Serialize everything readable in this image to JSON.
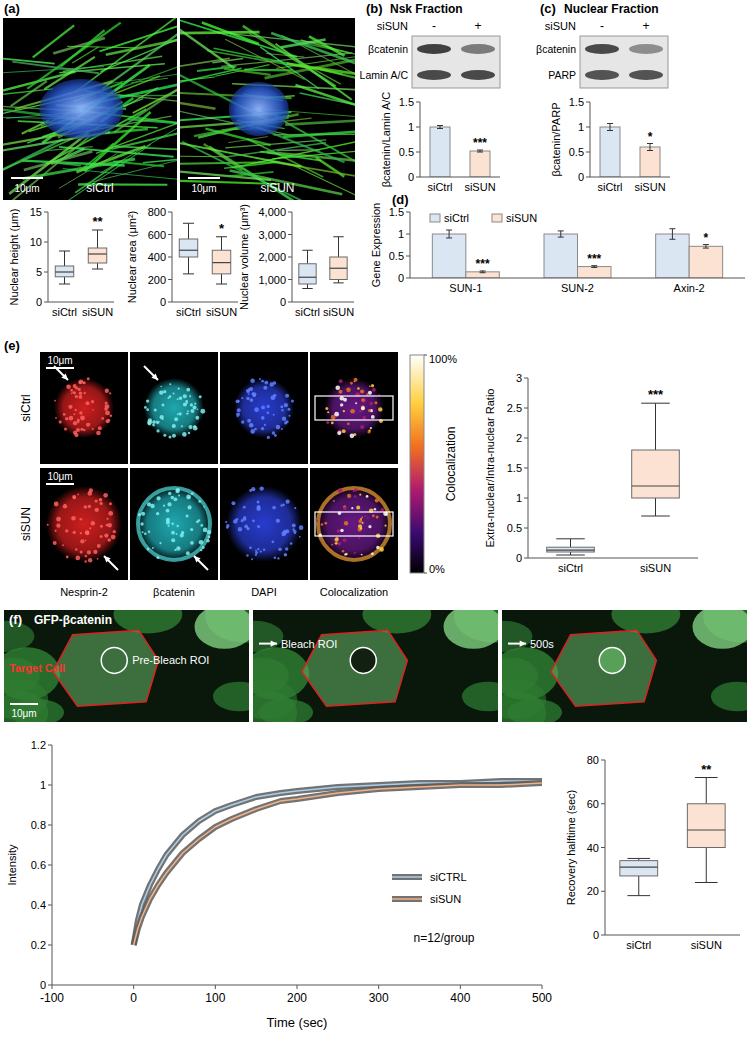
{
  "panels": {
    "a": {
      "label": "(a)",
      "images": [
        {
          "caption": "siCtrl",
          "scale_bar": "10μm"
        },
        {
          "caption": "siSUN",
          "scale_bar": "10μm"
        }
      ]
    },
    "b": {
      "label": "(b)",
      "title": "Nsk Fraction",
      "treatment": "siSUN",
      "lanes": [
        "-",
        "+"
      ],
      "bands": [
        "βcatenin",
        "Lamin A/C"
      ]
    },
    "c": {
      "label": "(c)",
      "title": "Nuclear Fraction",
      "treatment": "siSUN",
      "lanes": [
        "-",
        "+"
      ],
      "bands": [
        "βcatenin",
        "PARP"
      ]
    },
    "d": {
      "label": "(d)"
    },
    "e": {
      "label": "(e)",
      "rows": [
        "siCtrl",
        "siSUN"
      ],
      "columns": [
        "Nesprin-2",
        "βcatenin",
        "DAPI",
        "Colocalization"
      ],
      "scale_bar": "10μm",
      "colorbar": {
        "title": "Colocalization",
        "range": [
          0,
          100
        ],
        "ticks": [
          {
            "value": 0,
            "label": "0%"
          },
          {
            "value": 100,
            "label": "100%"
          }
        ]
      }
    },
    "f": {
      "label": "(f)",
      "channel": "GFP-βcatenin",
      "target": "Target Cell",
      "frames": [
        "Pre-Bleach ROI",
        "Bleach ROI",
        "500s"
      ],
      "scale_bar": "10μm"
    }
  },
  "chart_data": [
    {
      "type": "box",
      "ylabel": "Nuclear height (μm)",
      "categories": [
        "siCtrl",
        "siSUN"
      ],
      "colors": [
        "#dae6f2",
        "#fbe2d2"
      ],
      "ylim": [
        0,
        15
      ],
      "yticks": [
        0,
        5,
        10,
        15
      ],
      "boxes": [
        {
          "whisker_low": 3,
          "q1": 4.2,
          "median": 5,
          "q3": 6,
          "whisker_high": 8.5
        },
        {
          "whisker_low": 5.5,
          "q1": 6.5,
          "median": 8,
          "q3": 9,
          "whisker_high": 12
        }
      ],
      "significance": [
        null,
        "**"
      ]
    },
    {
      "type": "box",
      "ylabel": "Nuclear area (μm²)",
      "categories": [
        "siCtrl",
        "siSUN"
      ],
      "colors": [
        "#dae6f2",
        "#fbe2d2"
      ],
      "ylim": [
        0,
        800
      ],
      "yticks": [
        0,
        200,
        400,
        600,
        800
      ],
      "boxes": [
        {
          "whisker_low": 250,
          "q1": 400,
          "median": 460,
          "q3": 560,
          "whisker_high": 700
        },
        {
          "whisker_low": 160,
          "q1": 250,
          "median": 350,
          "q3": 460,
          "whisker_high": 580
        }
      ],
      "significance": [
        null,
        "*"
      ]
    },
    {
      "type": "box",
      "ylabel": "Nuclear volume (μm³)",
      "categories": [
        "siCtrl",
        "siSUN"
      ],
      "colors": [
        "#dae6f2",
        "#fbe2d2"
      ],
      "ylim": [
        0,
        4000
      ],
      "yticks": [
        0,
        {
          "value": 1000,
          "label": "1,000"
        },
        {
          "value": 2000,
          "label": "2,000"
        },
        {
          "value": 3000,
          "label": "3,000"
        },
        {
          "value": 4000,
          "label": "4,000"
        }
      ],
      "boxes": [
        {
          "whisker_low": 600,
          "q1": 800,
          "median": 1100,
          "q3": 1700,
          "whisker_high": 2300
        },
        {
          "whisker_low": 850,
          "q1": 1000,
          "median": 1500,
          "q3": 2000,
          "whisker_high": 2900
        }
      ]
    },
    {
      "type": "bar",
      "ylabel": "βcatenin/Lamin A/C",
      "categories": [
        "siCtrl",
        "siSUN"
      ],
      "colors": [
        "#dae6f2",
        "#fbe2d2"
      ],
      "values": [
        1,
        0.52
      ],
      "errors": [
        0.03,
        0.02
      ],
      "ylim": [
        0,
        1.5
      ],
      "yticks": [
        0,
        0.5,
        1,
        1.5
      ],
      "significance": [
        null,
        "***"
      ]
    },
    {
      "type": "bar",
      "ylabel": "βcatenin/PARP",
      "categories": [
        "siCtrl",
        "siSUN"
      ],
      "colors": [
        "#dae6f2",
        "#fbe2d2"
      ],
      "values": [
        1,
        0.6
      ],
      "errors": [
        0.07,
        0.07
      ],
      "ylim": [
        0,
        1.5
      ],
      "yticks": [
        0,
        0.5,
        1,
        1.5
      ],
      "significance": [
        null,
        "*"
      ]
    },
    {
      "type": "bar",
      "ylabel": "Gene Expression",
      "categories": [
        "SUN-1",
        "SUN-2",
        "Axin-2"
      ],
      "legend": "top",
      "ylim": [
        0,
        1.5
      ],
      "yticks": [
        0,
        0.5,
        1,
        1.5
      ],
      "series": [
        {
          "name": "siCtrl",
          "color": "#dae6f2",
          "values": [
            1,
            1,
            1
          ],
          "errors": [
            0.09,
            0.07,
            0.12
          ]
        },
        {
          "name": "siSUN",
          "color": "#fbe2d2",
          "values": [
            0.14,
            0.26,
            0.72
          ],
          "errors": [
            0.02,
            0.02,
            0.04
          ],
          "significance": [
            "***",
            "***",
            "*"
          ]
        }
      ]
    },
    {
      "type": "box",
      "ylabel": "Extra-nuclear/Intra-nuclear Ratio",
      "categories": [
        "siCtrl",
        "siSUN"
      ],
      "colors": [
        "#dae6f2",
        "#fbe2d2"
      ],
      "ylim": [
        0,
        3
      ],
      "yticks": [
        0,
        0.5,
        1,
        1.5,
        2,
        2.5,
        3
      ],
      "boxes": [
        {
          "whisker_low": 0.05,
          "q1": 0.1,
          "median": 0.13,
          "q3": 0.18,
          "whisker_high": 0.32
        },
        {
          "whisker_low": 0.7,
          "q1": 1,
          "median": 1.2,
          "q3": 1.8,
          "whisker_high": 2.58
        }
      ],
      "significance": [
        null,
        "***"
      ]
    },
    {
      "type": "line",
      "xlabel": "Time (sec)",
      "ylabel": "Intensity",
      "legend": "right",
      "xlim": [
        -100,
        500
      ],
      "xticks": [
        -100,
        0,
        100,
        200,
        300,
        400,
        500
      ],
      "ylim": [
        0,
        1.2
      ],
      "yticks": [
        0,
        0.2,
        0.4,
        0.6,
        0.8,
        1,
        1.2
      ],
      "x": [
        0,
        5,
        10,
        20,
        30,
        40,
        50,
        60,
        80,
        100,
        120,
        150,
        180,
        200,
        250,
        300,
        350,
        400,
        450,
        500
      ],
      "series": [
        {
          "name": "siCTRL",
          "color": "#a9d0ea",
          "values": [
            0.2,
            0.32,
            0.4,
            0.5,
            0.58,
            0.65,
            0.7,
            0.75,
            0.82,
            0.87,
            0.9,
            0.94,
            0.96,
            0.97,
            0.99,
            1.0,
            1.01,
            1.01,
            1.02,
            1.02
          ]
        },
        {
          "name": "siSUN",
          "color": "#f4b183",
          "values": [
            0.2,
            0.28,
            0.34,
            0.43,
            0.5,
            0.56,
            0.61,
            0.66,
            0.73,
            0.79,
            0.83,
            0.88,
            0.92,
            0.93,
            0.96,
            0.98,
            0.99,
            1.0,
            1.0,
            1.01
          ]
        }
      ],
      "annotations": [
        "n=12/group"
      ]
    },
    {
      "type": "box",
      "ylabel": "Recovery halftime (sec)",
      "categories": [
        "siCtrl",
        "siSUN"
      ],
      "colors": [
        "#dae6f2",
        "#fbe2d2"
      ],
      "ylim": [
        0,
        80
      ],
      "yticks": [
        0,
        20,
        40,
        60,
        80
      ],
      "boxes": [
        {
          "whisker_low": 18,
          "q1": 27,
          "median": 31,
          "q3": 34,
          "whisker_high": 35
        },
        {
          "whisker_low": 24,
          "q1": 40,
          "median": 48,
          "q3": 60,
          "whisker_high": 72
        }
      ],
      "significance": [
        null,
        "**"
      ]
    }
  ]
}
